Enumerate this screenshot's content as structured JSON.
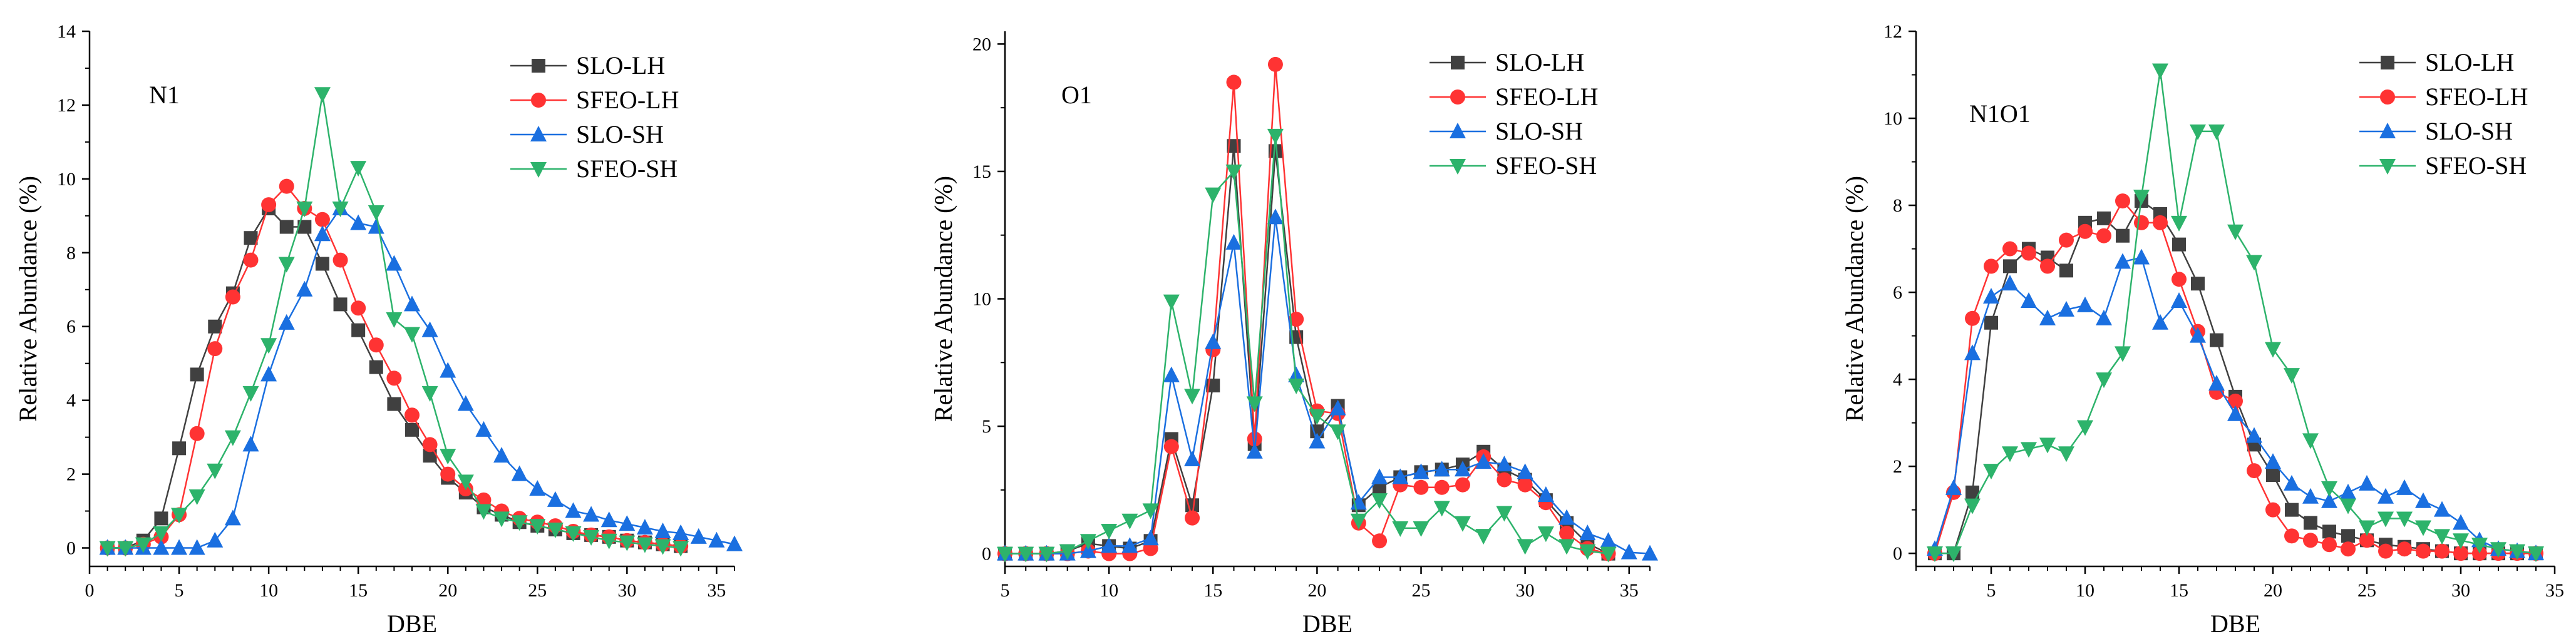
{
  "figure": {
    "title": ""
  },
  "chart_data": [
    {
      "type": "line",
      "panel_label": "N1",
      "xlabel": "DBE",
      "ylabel": "Relative Abundance (%)",
      "xlim": [
        0,
        36
      ],
      "ylim": [
        -0.5,
        14
      ],
      "xticks": [
        0,
        5,
        10,
        15,
        20,
        25,
        30,
        35
      ],
      "yticks": [
        0,
        2,
        4,
        6,
        8,
        10,
        12,
        14
      ],
      "legend": "top-right",
      "series": [
        {
          "name": "SLO-LH",
          "color": "#404040",
          "marker": "square",
          "x": [
            1,
            2,
            3,
            4,
            5,
            6,
            7,
            8,
            9,
            10,
            11,
            12,
            13,
            14,
            15,
            16,
            17,
            18,
            19,
            20,
            21,
            22,
            23,
            24,
            25,
            26,
            27,
            28,
            29,
            30,
            31,
            32,
            33
          ],
          "y": [
            0,
            0,
            0.2,
            0.8,
            2.7,
            4.7,
            6,
            6.9,
            8.4,
            9.2,
            8.7,
            8.7,
            7.7,
            6.6,
            5.9,
            4.9,
            3.9,
            3.2,
            2.5,
            1.9,
            1.5,
            1.1,
            0.9,
            0.7,
            0.6,
            0.5,
            0.4,
            0.35,
            0.3,
            0.2,
            0.15,
            0.1,
            0.05
          ]
        },
        {
          "name": "SFEO-LH",
          "color": "#ff3333",
          "marker": "circle",
          "x": [
            1,
            2,
            3,
            4,
            5,
            6,
            7,
            8,
            9,
            10,
            11,
            12,
            13,
            14,
            15,
            16,
            17,
            18,
            19,
            20,
            21,
            22,
            23,
            24,
            25,
            26,
            27,
            28,
            29,
            30,
            31,
            32,
            33
          ],
          "y": [
            0,
            0,
            0.1,
            0.3,
            0.9,
            3.1,
            5.4,
            6.8,
            7.8,
            9.3,
            9.8,
            9.2,
            8.9,
            7.8,
            6.5,
            5.5,
            4.6,
            3.6,
            2.8,
            2.0,
            1.6,
            1.3,
            1.0,
            0.8,
            0.7,
            0.6,
            0.45,
            0.35,
            0.3,
            0.2,
            0.15,
            0.1,
            0.05
          ]
        },
        {
          "name": "SLO-SH",
          "color": "#1a6fe0",
          "marker": "triangle-up",
          "x": [
            1,
            2,
            3,
            4,
            5,
            6,
            7,
            8,
            9,
            10,
            11,
            12,
            13,
            14,
            15,
            16,
            17,
            18,
            19,
            20,
            21,
            22,
            23,
            24,
            25,
            26,
            27,
            28,
            29,
            30,
            31,
            32,
            33,
            34,
            35,
            36
          ],
          "y": [
            0,
            0,
            0,
            0,
            0,
            0,
            0.2,
            0.8,
            2.8,
            4.7,
            6.1,
            7,
            8.5,
            9.2,
            8.8,
            8.7,
            7.7,
            6.6,
            5.9,
            4.8,
            3.9,
            3.2,
            2.5,
            2.0,
            1.6,
            1.3,
            1.0,
            0.9,
            0.75,
            0.65,
            0.55,
            0.45,
            0.4,
            0.3,
            0.2,
            0.1
          ]
        },
        {
          "name": "SFEO-SH",
          "color": "#2db36b",
          "marker": "triangle-down",
          "x": [
            1,
            2,
            3,
            4,
            5,
            6,
            7,
            8,
            9,
            10,
            11,
            12,
            13,
            14,
            15,
            16,
            17,
            18,
            19,
            20,
            21,
            22,
            23,
            24,
            25,
            26,
            27,
            28,
            29,
            30,
            31,
            32,
            33
          ],
          "y": [
            0,
            0,
            0.1,
            0.4,
            0.9,
            1.4,
            2.1,
            3.0,
            4.2,
            5.5,
            7.7,
            9.2,
            12.3,
            9.2,
            10.3,
            9.1,
            6.2,
            5.8,
            4.2,
            2.5,
            1.8,
            1.0,
            0.8,
            0.7,
            0.6,
            0.5,
            0.4,
            0.3,
            0.2,
            0.15,
            0.1,
            0.05,
            0
          ]
        }
      ]
    },
    {
      "type": "line",
      "panel_label": "O1",
      "xlabel": "DBE",
      "ylabel": "Relative Abundance (%)",
      "xlim": [
        5,
        36
      ],
      "ylim": [
        -0.5,
        20.5
      ],
      "xticks": [
        5,
        10,
        15,
        20,
        25,
        30,
        35
      ],
      "yticks": [
        0,
        5,
        10,
        15,
        20
      ],
      "legend": "top-right",
      "series": [
        {
          "name": "SLO-LH",
          "color": "#404040",
          "marker": "square",
          "x": [
            5,
            6,
            7,
            8,
            9,
            10,
            11,
            12,
            13,
            14,
            15,
            16,
            17,
            18,
            19,
            20,
            21,
            22,
            23,
            24,
            25,
            26,
            27,
            28,
            29,
            30,
            31,
            32,
            33,
            34
          ],
          "y": [
            0,
            0,
            0,
            0.1,
            0.4,
            0.3,
            0.2,
            0.5,
            4.5,
            1.9,
            6.6,
            16.0,
            4.3,
            15.8,
            8.5,
            4.8,
            5.8,
            1.9,
            2.6,
            3.0,
            3.2,
            3.3,
            3.5,
            4.0,
            3.3,
            2.9,
            2.1,
            1.2,
            0.4,
            0
          ]
        },
        {
          "name": "SFEO-LH",
          "color": "#ff3333",
          "marker": "circle",
          "x": [
            5,
            6,
            7,
            8,
            9,
            10,
            11,
            12,
            13,
            14,
            15,
            16,
            17,
            18,
            19,
            20,
            21,
            22,
            23,
            24,
            25,
            26,
            27,
            28,
            29,
            30,
            31,
            32,
            33,
            34
          ],
          "y": [
            0,
            0,
            0,
            0,
            0.1,
            0,
            0,
            0.2,
            4.2,
            1.4,
            8.0,
            18.5,
            4.5,
            19.2,
            9.2,
            5.6,
            5.5,
            1.2,
            0.5,
            2.7,
            2.6,
            2.6,
            2.7,
            3.8,
            2.9,
            2.7,
            2.0,
            0.8,
            0.2,
            0
          ]
        },
        {
          "name": "SLO-SH",
          "color": "#1a6fe0",
          "marker": "triangle-up",
          "x": [
            5,
            6,
            7,
            8,
            9,
            10,
            11,
            12,
            13,
            14,
            15,
            16,
            17,
            18,
            19,
            20,
            21,
            22,
            23,
            24,
            25,
            26,
            27,
            28,
            29,
            30,
            31,
            32,
            33,
            34,
            35,
            36
          ],
          "y": [
            0,
            0,
            0,
            0,
            0.1,
            0.3,
            0.3,
            0.6,
            7.0,
            3.7,
            8.3,
            12.2,
            4.0,
            13.2,
            7.0,
            4.4,
            5.7,
            2.0,
            3.0,
            3.0,
            3.2,
            3.3,
            3.3,
            3.6,
            3.5,
            3.2,
            2.3,
            1.4,
            0.8,
            0.5,
            0.05,
            0
          ]
        },
        {
          "name": "SFEO-SH",
          "color": "#2db36b",
          "marker": "triangle-down",
          "x": [
            5,
            6,
            7,
            8,
            9,
            10,
            11,
            12,
            13,
            14,
            15,
            16,
            17,
            18,
            19,
            20,
            21,
            22,
            23,
            24,
            25,
            26,
            27,
            28,
            29,
            30,
            31,
            32,
            33,
            34
          ],
          "y": [
            0,
            0,
            0,
            0.1,
            0.5,
            0.9,
            1.3,
            1.7,
            9.9,
            6.2,
            14.1,
            15.0,
            5.9,
            16.4,
            6.6,
            5.4,
            4.8,
            1.3,
            2.1,
            1.0,
            1.0,
            1.8,
            1.2,
            0.7,
            1.6,
            0.3,
            0.8,
            0.3,
            0.1,
            0
          ]
        }
      ]
    },
    {
      "type": "line",
      "panel_label": "N1O1",
      "xlabel": "DBE",
      "ylabel": "Relative Abundance (%)",
      "xlim": [
        1,
        35
      ],
      "ylim": [
        -0.3,
        12
      ],
      "xticks": [
        5,
        10,
        15,
        20,
        25,
        30,
        35
      ],
      "yticks": [
        0,
        2,
        4,
        6,
        8,
        10,
        12
      ],
      "legend": "top-right",
      "series": [
        {
          "name": "SLO-LH",
          "color": "#404040",
          "marker": "square",
          "x": [
            2,
            3,
            4,
            5,
            6,
            7,
            8,
            9,
            10,
            11,
            12,
            13,
            14,
            15,
            16,
            17,
            18,
            19,
            20,
            21,
            22,
            23,
            24,
            25,
            26,
            27,
            28,
            29,
            30,
            31,
            32,
            33,
            34
          ],
          "y": [
            0,
            0,
            1.4,
            5.3,
            6.6,
            7.0,
            6.8,
            6.5,
            7.6,
            7.7,
            7.3,
            8.1,
            7.8,
            7.1,
            6.2,
            4.9,
            3.6,
            2.5,
            1.8,
            1.0,
            0.7,
            0.5,
            0.4,
            0.3,
            0.2,
            0.15,
            0.1,
            0.05,
            0,
            0,
            0,
            0,
            0
          ]
        },
        {
          "name": "SFEO-LH",
          "color": "#ff3333",
          "marker": "circle",
          "x": [
            2,
            3,
            4,
            5,
            6,
            7,
            8,
            9,
            10,
            11,
            12,
            13,
            14,
            15,
            16,
            17,
            18,
            19,
            20,
            21,
            22,
            23,
            24,
            25,
            26,
            27,
            28,
            29,
            30,
            31,
            32,
            33,
            34
          ],
          "y": [
            0,
            1.4,
            5.4,
            6.6,
            7.0,
            6.9,
            6.6,
            7.2,
            7.4,
            7.3,
            8.1,
            7.6,
            7.6,
            6.3,
            5.1,
            3.7,
            3.5,
            1.9,
            1.0,
            0.4,
            0.3,
            0.2,
            0.1,
            0.3,
            0.05,
            0.1,
            0.05,
            0.05,
            0,
            0,
            0,
            0,
            0
          ]
        },
        {
          "name": "SLO-SH",
          "color": "#1a6fe0",
          "marker": "triangle-up",
          "x": [
            2,
            3,
            4,
            5,
            6,
            7,
            8,
            9,
            10,
            11,
            12,
            13,
            14,
            15,
            16,
            17,
            18,
            19,
            20,
            21,
            22,
            23,
            24,
            25,
            26,
            27,
            28,
            29,
            30,
            31,
            32,
            33,
            34
          ],
          "y": [
            0.1,
            1.5,
            4.6,
            5.9,
            6.2,
            5.8,
            5.4,
            5.6,
            5.7,
            5.4,
            6.7,
            6.8,
            5.3,
            5.8,
            5.0,
            3.9,
            3.2,
            2.7,
            2.1,
            1.6,
            1.3,
            1.2,
            1.4,
            1.6,
            1.3,
            1.5,
            1.2,
            1.0,
            0.7,
            0.3,
            0.1,
            0.05,
            0
          ]
        },
        {
          "name": "SFEO-SH",
          "color": "#2db36b",
          "marker": "triangle-down",
          "x": [
            2,
            3,
            4,
            5,
            6,
            7,
            8,
            9,
            10,
            11,
            12,
            13,
            14,
            15,
            16,
            17,
            18,
            19,
            20,
            21,
            22,
            23,
            24,
            25,
            26,
            27,
            28,
            29,
            30,
            31,
            32,
            33,
            34
          ],
          "y": [
            0,
            0,
            1.1,
            1.9,
            2.3,
            2.4,
            2.5,
            2.3,
            2.9,
            4.0,
            4.6,
            8.2,
            11.1,
            7.6,
            9.7,
            9.7,
            7.4,
            6.7,
            4.7,
            4.1,
            2.6,
            1.5,
            1.1,
            0.6,
            0.8,
            0.8,
            0.6,
            0.4,
            0.3,
            0.2,
            0.1,
            0.05,
            0
          ]
        }
      ]
    }
  ]
}
